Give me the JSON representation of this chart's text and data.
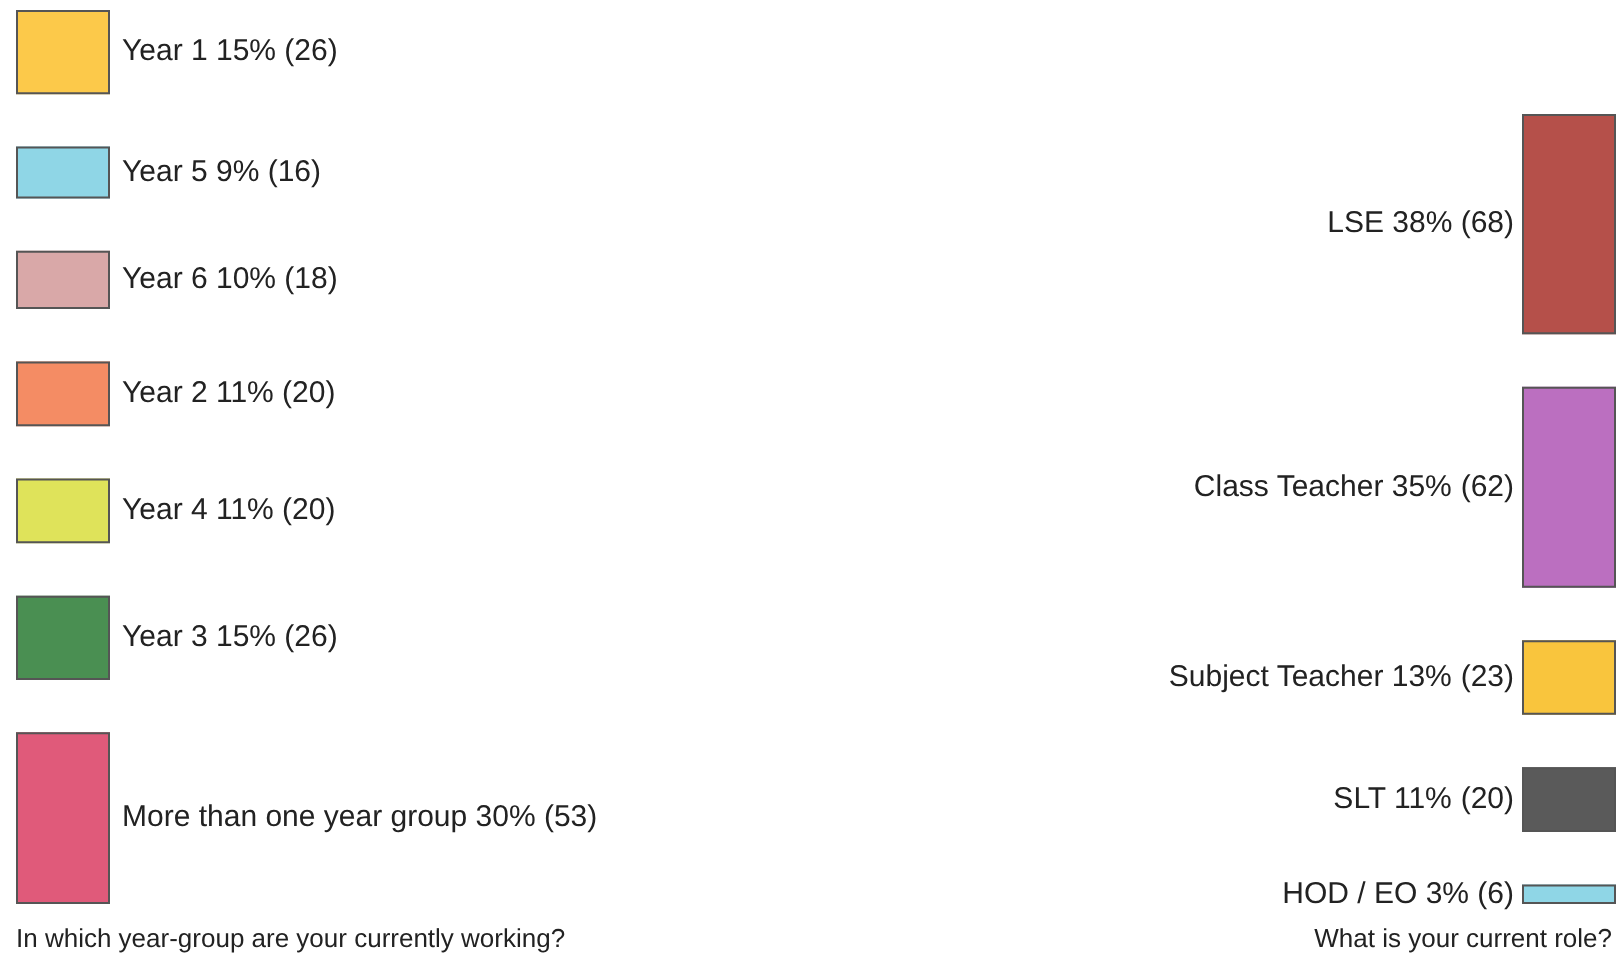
{
  "chart_data": {
    "type": "other",
    "categories": [
      "Year 1 15%",
      "Year 5 9%",
      "Year 6 10%",
      "Year 2 11%",
      "Year 4 11%",
      "Year 3 15%",
      "More than one year group 30%",
      "LSE 38%",
      "Class Teacher 35%",
      "Subject Teacher 13%",
      "SLT 11%",
      "HOD / EO 3%"
    ],
    "values": [
      26,
      16,
      18,
      20,
      20,
      26,
      53,
      68,
      62,
      23,
      20,
      6
    ],
    "value_labels": [
      "(26)",
      "(16)",
      "(18)",
      "(20)",
      "(20)",
      "(26)",
      "(53)",
      "(68)",
      "(62)",
      "(23)",
      "(20)",
      "(6)"
    ],
    "colors": [
      "#fcc94a",
      "#8fd6e6",
      "#d9a8a8",
      "#f48c64",
      "#dfe35a",
      "#4a8f52",
      "#e05a7a",
      "#b5504a",
      "#bb6fc0",
      "#f9c53d",
      "#5a5a5a",
      "#8fd6e6"
    ],
    "annotations": [
      "In which year-group are your currently working?",
      "What is your current role?"
    ]
  }
}
